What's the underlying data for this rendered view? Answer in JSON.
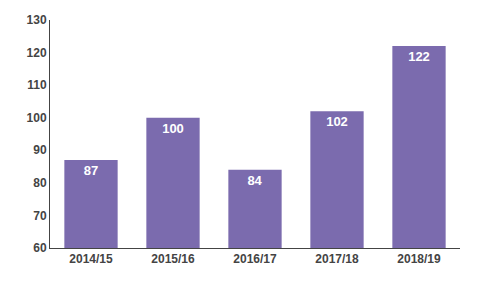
{
  "chart_data": {
    "type": "bar",
    "categories": [
      "2014/15",
      "2015/16",
      "2016/17",
      "2017/18",
      "2018/19"
    ],
    "values": [
      87,
      100,
      84,
      102,
      122
    ],
    "color": "#7B6BAE",
    "ylim": [
      60,
      130
    ],
    "yticks": [
      60,
      70,
      80,
      90,
      100,
      110,
      120,
      130
    ],
    "data_labels": true,
    "grid": false
  }
}
